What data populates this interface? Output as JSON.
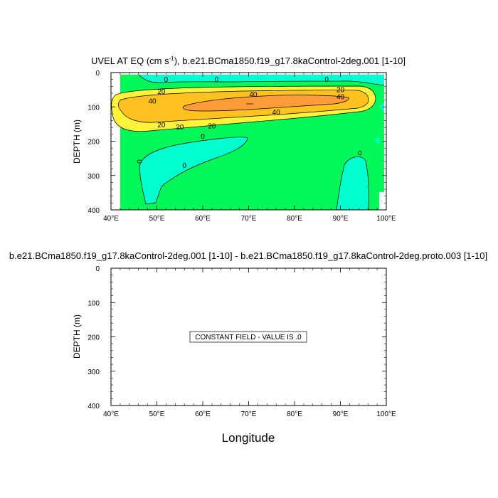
{
  "chart_data": [
    {
      "type": "heatmap",
      "subtype": "filled-contour",
      "title": "UVEL AT EQ (cm s",
      "title_sup": "-1",
      "title_rest": "), b.e21.BCma1850.f19_g17.8kaControl-2deg.001 [1-10]",
      "xlabel": "",
      "ylabel": "DEPTH (m)",
      "xlim": [
        40,
        100
      ],
      "ylim": [
        400,
        0
      ],
      "x_ticks": [
        "40°E",
        "50°E",
        "60°E",
        "70°E",
        "80°E",
        "90°E",
        "100°E"
      ],
      "y_ticks": [
        "0",
        "100",
        "200",
        "300",
        "400"
      ],
      "contour_levels": [
        0,
        20,
        40
      ],
      "contour_labels": [
        "0",
        "0",
        "0",
        "20",
        "20",
        "40",
        "40",
        "40",
        "20",
        "20",
        "40",
        "20",
        "0",
        "0"
      ],
      "colors": {
        "negative": "#00ffd0",
        "zero_to_20": "#00f958",
        "twenty_to_40": "#fff23a",
        "forty_to_60": "#ffc21e",
        "core": "#ff9c3a",
        "no_data": "#ffffff"
      }
    },
    {
      "type": "heatmap",
      "subtype": "difference-field",
      "title": "b.e21.BCma1850.f19_g17.8kaControl-2deg.001 [1-10] - b.e21.BCma1850.f19_g17.8kaControl-2deg.proto.003 [1-10]",
      "xlabel": "Longitude",
      "ylabel": "DEPTH (m)",
      "xlim": [
        40,
        100
      ],
      "ylim": [
        400,
        0
      ],
      "x_ticks": [
        "40°E",
        "50°E",
        "60°E",
        "70°E",
        "80°E",
        "90°E",
        "100°E"
      ],
      "y_ticks": [
        "0",
        "100",
        "200",
        "300",
        "400"
      ],
      "annotation": "CONSTANT FIELD - VALUE IS .0"
    }
  ]
}
